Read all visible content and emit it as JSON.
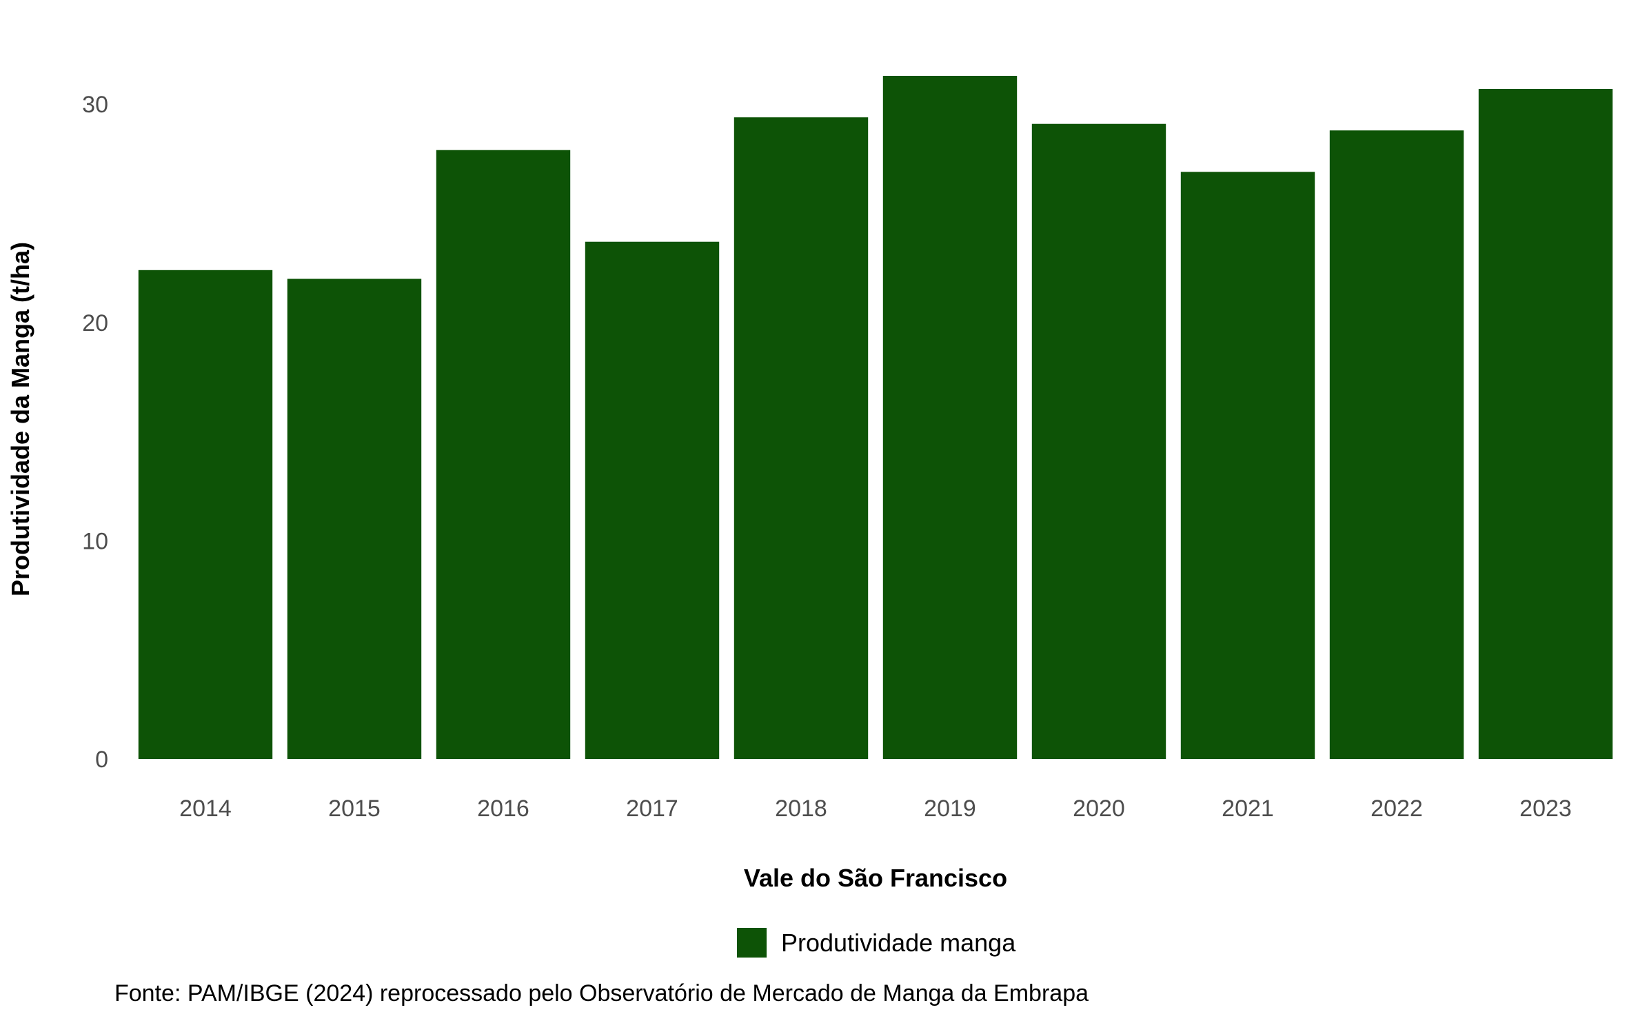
{
  "chart_data": {
    "type": "bar",
    "categories": [
      "2014",
      "2015",
      "2016",
      "2017",
      "2018",
      "2019",
      "2020",
      "2021",
      "2022",
      "2023"
    ],
    "series": [
      {
        "name": "Produtividade manga",
        "values": [
          22.4,
          22.0,
          27.9,
          23.7,
          29.4,
          31.3,
          29.1,
          26.9,
          28.8,
          30.7
        ],
        "color": "#0d5306"
      }
    ],
    "xlabel": "Vale do São Francisco",
    "ylabel": "Produtividade da Manga (t/ha)",
    "ylim": [
      0,
      32
    ],
    "yticks": [
      0,
      10,
      20,
      30
    ],
    "grid": false,
    "legend_position": "bottom",
    "caption": "Fonte: PAM/IBGE (2024) reprocessado pelo Observatório de Mercado de Manga da Embrapa"
  }
}
